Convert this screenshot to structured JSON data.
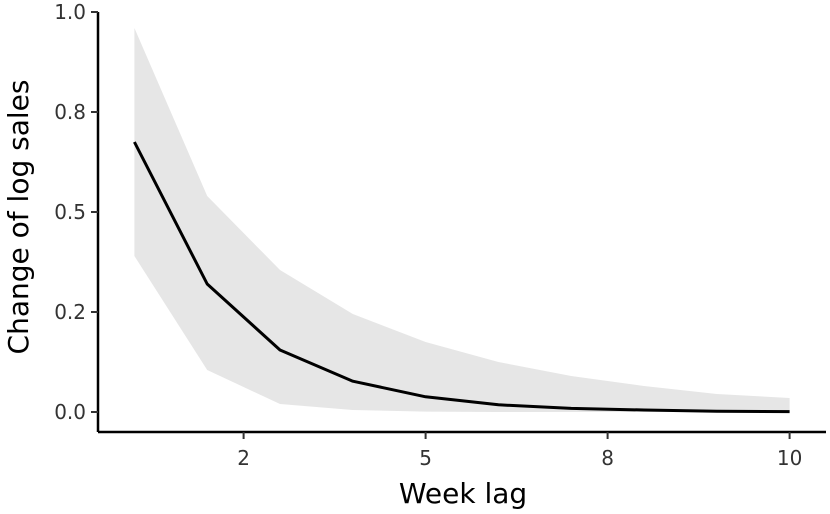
{
  "chart_data": {
    "type": "line",
    "title": "",
    "xlabel": "Week lag",
    "ylabel": "Change of log sales",
    "xlim": [
      0.5,
      10.5
    ],
    "ylim": [
      -0.05,
      1.0
    ],
    "x_ticks": [
      {
        "value": 2.5,
        "label": "2"
      },
      {
        "value": 5.0,
        "label": "5"
      },
      {
        "value": 7.5,
        "label": "8"
      },
      {
        "value": 10.0,
        "label": "10"
      }
    ],
    "y_ticks": [
      {
        "value": 0.0,
        "label": "0.0"
      },
      {
        "value": 0.25,
        "label": "0.2"
      },
      {
        "value": 0.5,
        "label": "0.5"
      },
      {
        "value": 0.75,
        "label": "0.8"
      },
      {
        "value": 1.0,
        "label": "1.0"
      }
    ],
    "grid": false,
    "series": [
      {
        "x": [
          1,
          2,
          3,
          4,
          5,
          6,
          7,
          8,
          9,
          10
        ],
        "values": [
          0.675,
          0.32,
          0.155,
          0.077,
          0.038,
          0.018,
          0.009,
          0.005,
          0.002,
          0.001
        ],
        "lower": [
          0.39,
          0.105,
          0.02,
          0.005,
          0.001,
          0.0,
          0.0,
          0.0,
          0.0,
          0.0
        ],
        "upper": [
          0.96,
          0.54,
          0.355,
          0.245,
          0.175,
          0.125,
          0.09,
          0.065,
          0.045,
          0.035
        ],
        "line_color": "#000000",
        "band_color": "#e6e6e6"
      }
    ]
  }
}
